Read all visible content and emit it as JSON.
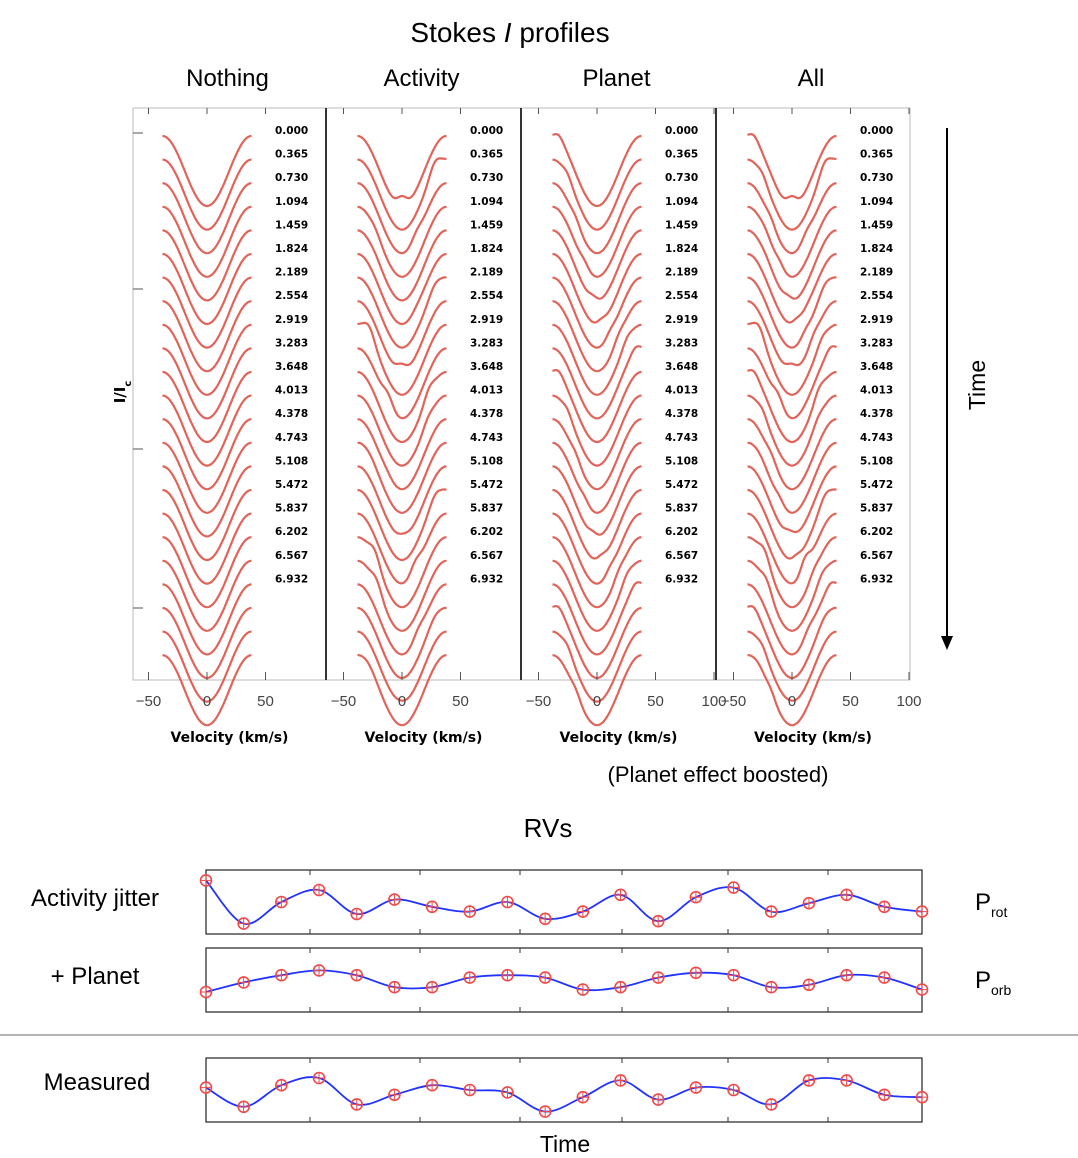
{
  "figure": {
    "title_prefix": "Stokes ",
    "title_italic": "I",
    "title_suffix": " profiles",
    "ylabel": "I/I",
    "ylabel_sub": "c",
    "time_label": "Time",
    "boost_note": "(Planet effect boosted)",
    "rv_title": "RVs",
    "rv_time_label": "Time"
  },
  "colors": {
    "profile_line": "#e0645a",
    "profile_line_dark": "#b83a30",
    "rv_curve": "#2233ff",
    "rv_marker": "#ee4a4a",
    "frame": "#222222"
  },
  "chart_data": [
    {
      "type": "line",
      "panels": [
        {
          "title": "Nothing",
          "xticks": [
            "−50",
            "0",
            "50"
          ],
          "xlim": [
            -60,
            60
          ],
          "activity": false,
          "planet": false
        },
        {
          "title": "Activity",
          "xticks": [
            "−50",
            "0",
            "50"
          ],
          "xlim": [
            -60,
            60
          ],
          "activity": true,
          "planet": false
        },
        {
          "title": "Planet",
          "xticks": [
            "−50",
            "0",
            "50",
            "100"
          ],
          "xlim": [
            -65,
            100
          ],
          "activity": false,
          "planet": true
        },
        {
          "title": "All",
          "xticks": [
            "−50",
            "0",
            "50",
            "100"
          ],
          "xlim": [
            -65,
            100
          ],
          "activity": true,
          "planet": true
        }
      ],
      "xlabel": "Velocity (km/s)",
      "phases": [
        "0.000",
        "0.365",
        "0.730",
        "1.094",
        "1.459",
        "1.824",
        "2.189",
        "2.554",
        "2.919",
        "3.283",
        "3.648",
        "4.013",
        "4.378",
        "4.743",
        "5.108",
        "5.472",
        "5.837",
        "6.202",
        "6.567",
        "6.932"
      ],
      "n_profiles": 23,
      "line_center_kms": 0,
      "line_halfwidth_kms": 38
    },
    {
      "type": "line",
      "panels": [
        {
          "label": "Activity jitter",
          "period_label": "P",
          "period_sub": "rot",
          "t": [
            0,
            1,
            2,
            3,
            4,
            5,
            6,
            7,
            8,
            9,
            10,
            11,
            12,
            13,
            14,
            15,
            16,
            17,
            18,
            19
          ],
          "values": [
            0.9,
            -0.9,
            0.0,
            0.5,
            -0.5,
            0.1,
            -0.2,
            -0.4,
            0.0,
            -0.7,
            -0.4,
            0.3,
            -0.8,
            0.2,
            0.6,
            -0.4,
            -0.05,
            0.3,
            -0.2,
            -0.4
          ]
        },
        {
          "label": "+ Planet",
          "period_label": "P",
          "period_sub": "orb",
          "t": [
            0,
            1,
            2,
            3,
            4,
            5,
            6,
            7,
            8,
            9,
            10,
            11,
            12,
            13,
            14,
            15,
            16,
            17,
            18,
            19
          ],
          "values": [
            -0.5,
            -0.1,
            0.2,
            0.4,
            0.2,
            -0.3,
            -0.3,
            0.1,
            0.2,
            0.1,
            -0.4,
            -0.3,
            0.1,
            0.3,
            0.2,
            -0.3,
            -0.2,
            0.2,
            0.1,
            -0.4
          ]
        },
        {
          "label": "Measured",
          "t": [
            0,
            1,
            2,
            3,
            4,
            5,
            6,
            7,
            8,
            9,
            10,
            11,
            12,
            13,
            14,
            15,
            16,
            17,
            18,
            19
          ],
          "values": [
            0.1,
            -0.7,
            0.2,
            0.5,
            -0.6,
            -0.2,
            0.2,
            0.0,
            -0.1,
            -0.9,
            -0.3,
            0.4,
            -0.4,
            0.1,
            0.0,
            -0.6,
            0.4,
            0.4,
            -0.2,
            -0.3
          ]
        }
      ]
    }
  ]
}
